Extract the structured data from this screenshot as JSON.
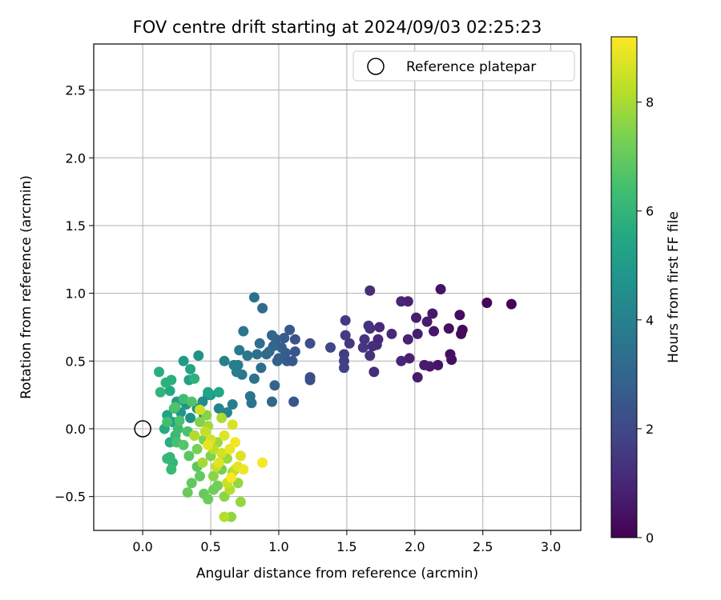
{
  "chart_data": {
    "type": "scatter",
    "title": "FOV centre drift starting at 2024/09/03 02:25:23",
    "xlabel": "Angular distance from reference (arcmin)",
    "ylabel": "Rotation from reference (arcmin)",
    "xlim": [
      -0.36,
      3.22
    ],
    "ylim": [
      -0.75,
      2.84
    ],
    "xticks": [
      "0.0",
      "0.5",
      "1.0",
      "1.5",
      "2.0",
      "2.5",
      "3.0"
    ],
    "xtick_values": [
      0,
      0.5,
      1.0,
      1.5,
      2.0,
      2.5,
      3.0
    ],
    "yticks": [
      "−0.5",
      "0.0",
      "0.5",
      "1.0",
      "1.5",
      "2.0",
      "2.5"
    ],
    "ytick_values": [
      -0.5,
      0,
      0.5,
      1.0,
      1.5,
      2.0,
      2.5
    ],
    "grid": true,
    "legend": {
      "position": "top-right",
      "label": "Reference platepar"
    },
    "reference_point": {
      "x": 0.0,
      "y": 0.0
    },
    "colorbar": {
      "label": "Hours from first FF file",
      "colormap": "viridis",
      "range": [
        0,
        9.2
      ],
      "ticks": [
        "0",
        "2",
        "4",
        "6",
        "8"
      ],
      "tick_values": [
        0,
        2,
        4,
        6,
        8
      ]
    },
    "points": [
      {
        "x": 2.71,
        "y": 0.92,
        "c": 0.05
      },
      {
        "x": 2.53,
        "y": 0.93,
        "c": 0.1
      },
      {
        "x": 2.35,
        "y": 0.73,
        "c": 0.2
      },
      {
        "x": 2.34,
        "y": 0.7,
        "c": 0.25
      },
      {
        "x": 2.33,
        "y": 0.84,
        "c": 0.3
      },
      {
        "x": 2.27,
        "y": 0.51,
        "c": 0.35
      },
      {
        "x": 2.26,
        "y": 0.55,
        "c": 0.4
      },
      {
        "x": 2.25,
        "y": 0.74,
        "c": 0.4
      },
      {
        "x": 2.19,
        "y": 1.03,
        "c": 0.45
      },
      {
        "x": 2.17,
        "y": 0.47,
        "c": 0.5
      },
      {
        "x": 2.14,
        "y": 0.72,
        "c": 0.55
      },
      {
        "x": 2.13,
        "y": 0.85,
        "c": 0.6
      },
      {
        "x": 2.11,
        "y": 0.46,
        "c": 0.6
      },
      {
        "x": 2.09,
        "y": 0.79,
        "c": 0.65
      },
      {
        "x": 2.07,
        "y": 0.47,
        "c": 0.7
      },
      {
        "x": 2.02,
        "y": 0.38,
        "c": 0.7
      },
      {
        "x": 2.02,
        "y": 0.7,
        "c": 0.75
      },
      {
        "x": 2.01,
        "y": 0.82,
        "c": 0.8
      },
      {
        "x": 1.96,
        "y": 0.52,
        "c": 0.85
      },
      {
        "x": 1.95,
        "y": 0.66,
        "c": 0.9
      },
      {
        "x": 1.95,
        "y": 0.94,
        "c": 0.9
      },
      {
        "x": 1.9,
        "y": 0.94,
        "c": 0.95
      },
      {
        "x": 1.9,
        "y": 0.5,
        "c": 1.0
      },
      {
        "x": 1.83,
        "y": 0.7,
        "c": 1.05
      },
      {
        "x": 1.74,
        "y": 0.75,
        "c": 1.1
      },
      {
        "x": 1.73,
        "y": 0.66,
        "c": 1.1
      },
      {
        "x": 1.72,
        "y": 0.62,
        "c": 1.15
      },
      {
        "x": 1.7,
        "y": 0.42,
        "c": 1.2
      },
      {
        "x": 1.69,
        "y": 0.61,
        "c": 1.25
      },
      {
        "x": 1.67,
        "y": 1.02,
        "c": 1.25
      },
      {
        "x": 1.67,
        "y": 0.54,
        "c": 1.3
      },
      {
        "x": 1.67,
        "y": 0.74,
        "c": 1.3
      },
      {
        "x": 1.66,
        "y": 0.76,
        "c": 1.35
      },
      {
        "x": 1.63,
        "y": 0.66,
        "c": 1.4
      },
      {
        "x": 1.62,
        "y": 0.6,
        "c": 1.45
      },
      {
        "x": 1.52,
        "y": 0.63,
        "c": 1.5
      },
      {
        "x": 1.49,
        "y": 0.8,
        "c": 1.55
      },
      {
        "x": 1.49,
        "y": 0.69,
        "c": 1.6
      },
      {
        "x": 1.48,
        "y": 0.55,
        "c": 1.65
      },
      {
        "x": 1.48,
        "y": 0.5,
        "c": 1.7
      },
      {
        "x": 1.48,
        "y": 0.45,
        "c": 1.75
      },
      {
        "x": 1.38,
        "y": 0.6,
        "c": 1.9
      },
      {
        "x": 1.23,
        "y": 0.38,
        "c": 2.1
      },
      {
        "x": 1.23,
        "y": 0.36,
        "c": 2.2
      },
      {
        "x": 1.23,
        "y": 0.63,
        "c": 2.25
      },
      {
        "x": 1.12,
        "y": 0.66,
        "c": 2.4
      },
      {
        "x": 1.12,
        "y": 0.57,
        "c": 2.45
      },
      {
        "x": 1.11,
        "y": 0.2,
        "c": 2.5
      },
      {
        "x": 1.1,
        "y": 0.5,
        "c": 2.5
      },
      {
        "x": 1.08,
        "y": 0.73,
        "c": 2.55
      },
      {
        "x": 1.06,
        "y": 0.5,
        "c": 2.6
      },
      {
        "x": 1.05,
        "y": 0.56,
        "c": 2.65
      },
      {
        "x": 1.04,
        "y": 0.67,
        "c": 2.7
      },
      {
        "x": 1.02,
        "y": 0.6,
        "c": 2.75
      },
      {
        "x": 1.0,
        "y": 0.52,
        "c": 2.8
      },
      {
        "x": 0.99,
        "y": 0.5,
        "c": 2.85
      },
      {
        "x": 0.98,
        "y": 0.66,
        "c": 2.9
      },
      {
        "x": 0.97,
        "y": 0.32,
        "c": 2.95
      },
      {
        "x": 0.96,
        "y": 0.61,
        "c": 3.0
      },
      {
        "x": 0.95,
        "y": 0.69,
        "c": 3.05
      },
      {
        "x": 0.95,
        "y": 0.2,
        "c": 3.1
      },
      {
        "x": 0.93,
        "y": 0.57,
        "c": 3.15
      },
      {
        "x": 0.91,
        "y": 0.55,
        "c": 3.2
      },
      {
        "x": 0.88,
        "y": 0.89,
        "c": 3.2
      },
      {
        "x": 0.87,
        "y": 0.45,
        "c": 3.25
      },
      {
        "x": 0.86,
        "y": 0.63,
        "c": 3.3
      },
      {
        "x": 0.84,
        "y": 0.55,
        "c": 3.35
      },
      {
        "x": 0.82,
        "y": 0.97,
        "c": 3.4
      },
      {
        "x": 0.82,
        "y": 0.37,
        "c": 3.45
      },
      {
        "x": 0.8,
        "y": 0.19,
        "c": 3.5
      },
      {
        "x": 0.79,
        "y": 0.24,
        "c": 3.55
      },
      {
        "x": 0.77,
        "y": 0.54,
        "c": 3.6
      },
      {
        "x": 0.74,
        "y": 0.72,
        "c": 3.65
      },
      {
        "x": 0.73,
        "y": 0.4,
        "c": 3.7
      },
      {
        "x": 0.71,
        "y": 0.58,
        "c": 3.75
      },
      {
        "x": 0.7,
        "y": 0.47,
        "c": 3.8
      },
      {
        "x": 0.69,
        "y": 0.42,
        "c": 3.85
      },
      {
        "x": 0.67,
        "y": 0.47,
        "c": 3.9
      },
      {
        "x": 0.66,
        "y": 0.18,
        "c": 3.95
      },
      {
        "x": 0.6,
        "y": 0.5,
        "c": 4.0
      },
      {
        "x": 0.62,
        "y": 0.12,
        "c": 4.05
      },
      {
        "x": 0.56,
        "y": 0.15,
        "c": 4.1
      },
      {
        "x": 0.48,
        "y": 0.25,
        "c": 4.2
      },
      {
        "x": 0.45,
        "y": 0.1,
        "c": 4.3
      },
      {
        "x": 0.44,
        "y": 0.2,
        "c": 4.4
      },
      {
        "x": 0.4,
        "y": 0.15,
        "c": 4.5
      },
      {
        "x": 0.35,
        "y": 0.08,
        "c": 4.6
      },
      {
        "x": 0.41,
        "y": 0.54,
        "c": 4.6
      },
      {
        "x": 0.32,
        "y": 0.18,
        "c": 4.7
      },
      {
        "x": 0.28,
        "y": 0.12,
        "c": 4.8
      },
      {
        "x": 0.3,
        "y": 0.5,
        "c": 4.9
      },
      {
        "x": 0.25,
        "y": 0.2,
        "c": 5.0
      },
      {
        "x": 0.5,
        "y": 0.25,
        "c": 5.05
      },
      {
        "x": 0.34,
        "y": 0.36,
        "c": 5.1
      },
      {
        "x": 0.22,
        "y": 0.05,
        "c": 5.2
      },
      {
        "x": 0.18,
        "y": 0.1,
        "c": 5.3
      },
      {
        "x": 0.35,
        "y": 0.44,
        "c": 5.35
      },
      {
        "x": 0.48,
        "y": 0.27,
        "c": 5.4
      },
      {
        "x": 0.56,
        "y": 0.27,
        "c": 5.45
      },
      {
        "x": 0.2,
        "y": 0.28,
        "c": 5.5
      },
      {
        "x": 0.16,
        "y": 0.0,
        "c": 5.6
      },
      {
        "x": 0.2,
        "y": -0.1,
        "c": 5.7
      },
      {
        "x": 0.12,
        "y": 0.42,
        "c": 5.75
      },
      {
        "x": 0.21,
        "y": 0.36,
        "c": 5.8
      },
      {
        "x": 0.17,
        "y": 0.34,
        "c": 5.85
      },
      {
        "x": 0.38,
        "y": 0.37,
        "c": 5.9
      },
      {
        "x": 0.13,
        "y": 0.27,
        "c": 5.95
      },
      {
        "x": 0.22,
        "y": -0.25,
        "c": 6.0
      },
      {
        "x": 0.2,
        "y": -0.21,
        "c": 6.05
      },
      {
        "x": 0.18,
        "y": -0.22,
        "c": 6.1
      },
      {
        "x": 0.21,
        "y": -0.3,
        "c": 6.15
      },
      {
        "x": 0.24,
        "y": -0.05,
        "c": 6.2
      },
      {
        "x": 0.26,
        "y": 0.0,
        "c": 6.25
      },
      {
        "x": 0.3,
        "y": 0.22,
        "c": 6.3
      },
      {
        "x": 0.23,
        "y": 0.15,
        "c": 6.35
      },
      {
        "x": 0.18,
        "y": 0.05,
        "c": 6.4
      },
      {
        "x": 0.25,
        "y": -0.1,
        "c": 6.45
      },
      {
        "x": 0.27,
        "y": 0.06,
        "c": 6.5
      },
      {
        "x": 0.33,
        "y": -0.02,
        "c": 6.55
      },
      {
        "x": 0.24,
        "y": 0.16,
        "c": 6.6
      },
      {
        "x": 0.36,
        "y": 0.2,
        "c": 6.65
      },
      {
        "x": 0.38,
        "y": -0.05,
        "c": 6.7
      },
      {
        "x": 0.3,
        "y": -0.12,
        "c": 6.75
      },
      {
        "x": 0.34,
        "y": -0.2,
        "c": 6.8
      },
      {
        "x": 0.4,
        "y": -0.28,
        "c": 6.85
      },
      {
        "x": 0.36,
        "y": -0.4,
        "c": 6.9
      },
      {
        "x": 0.42,
        "y": -0.35,
        "c": 6.95
      },
      {
        "x": 0.45,
        "y": -0.48,
        "c": 7.0
      },
      {
        "x": 0.33,
        "y": -0.47,
        "c": 7.05
      },
      {
        "x": 0.48,
        "y": -0.52,
        "c": 7.1
      },
      {
        "x": 0.52,
        "y": -0.45,
        "c": 7.15
      },
      {
        "x": 0.55,
        "y": -0.42,
        "c": 7.2
      },
      {
        "x": 0.58,
        "y": -0.3,
        "c": 7.25
      },
      {
        "x": 0.4,
        "y": -0.15,
        "c": 7.3
      },
      {
        "x": 0.45,
        "y": -0.08,
        "c": 7.35
      },
      {
        "x": 0.5,
        "y": -0.2,
        "c": 7.4
      },
      {
        "x": 0.42,
        "y": 0.05,
        "c": 7.45
      },
      {
        "x": 0.47,
        "y": 0.1,
        "c": 7.5
      },
      {
        "x": 0.52,
        "y": -0.35,
        "c": 7.55
      },
      {
        "x": 0.6,
        "y": -0.5,
        "c": 7.6
      },
      {
        "x": 0.65,
        "y": -0.65,
        "c": 7.65
      },
      {
        "x": 0.72,
        "y": -0.54,
        "c": 7.7
      },
      {
        "x": 0.7,
        "y": -0.4,
        "c": 7.75
      },
      {
        "x": 0.62,
        "y": -0.22,
        "c": 7.8
      },
      {
        "x": 0.55,
        "y": -0.1,
        "c": 7.85
      },
      {
        "x": 0.48,
        "y": 0.02,
        "c": 7.9
      },
      {
        "x": 0.44,
        "y": -0.25,
        "c": 7.95
      },
      {
        "x": 0.66,
        "y": -0.32,
        "c": 8.0
      },
      {
        "x": 0.58,
        "y": 0.08,
        "c": 8.05
      },
      {
        "x": 0.38,
        "y": -0.05,
        "c": 8.1
      },
      {
        "x": 0.6,
        "y": -0.65,
        "c": 8.15
      },
      {
        "x": 0.64,
        "y": -0.45,
        "c": 8.2
      },
      {
        "x": 0.52,
        "y": -0.15,
        "c": 8.25
      },
      {
        "x": 0.68,
        "y": -0.3,
        "c": 8.3
      },
      {
        "x": 0.46,
        "y": -0.02,
        "c": 8.35
      },
      {
        "x": 0.54,
        "y": -0.28,
        "c": 8.4
      },
      {
        "x": 0.62,
        "y": -0.4,
        "c": 8.45
      },
      {
        "x": 0.42,
        "y": 0.14,
        "c": 8.5
      },
      {
        "x": 0.58,
        "y": -0.18,
        "c": 8.55
      },
      {
        "x": 0.5,
        "y": -0.08,
        "c": 8.6
      },
      {
        "x": 0.66,
        "y": 0.03,
        "c": 8.65
      },
      {
        "x": 0.72,
        "y": -0.2,
        "c": 8.7
      },
      {
        "x": 0.6,
        "y": -0.05,
        "c": 8.75
      },
      {
        "x": 0.56,
        "y": -0.25,
        "c": 8.8
      },
      {
        "x": 0.7,
        "y": -0.28,
        "c": 8.85
      },
      {
        "x": 0.48,
        "y": -0.12,
        "c": 8.9
      },
      {
        "x": 0.64,
        "y": -0.15,
        "c": 8.95
      },
      {
        "x": 0.74,
        "y": -0.3,
        "c": 9.0
      },
      {
        "x": 0.68,
        "y": -0.1,
        "c": 9.05
      },
      {
        "x": 0.88,
        "y": -0.25,
        "c": 9.1
      },
      {
        "x": 0.65,
        "y": -0.36,
        "c": 9.15
      }
    ]
  }
}
